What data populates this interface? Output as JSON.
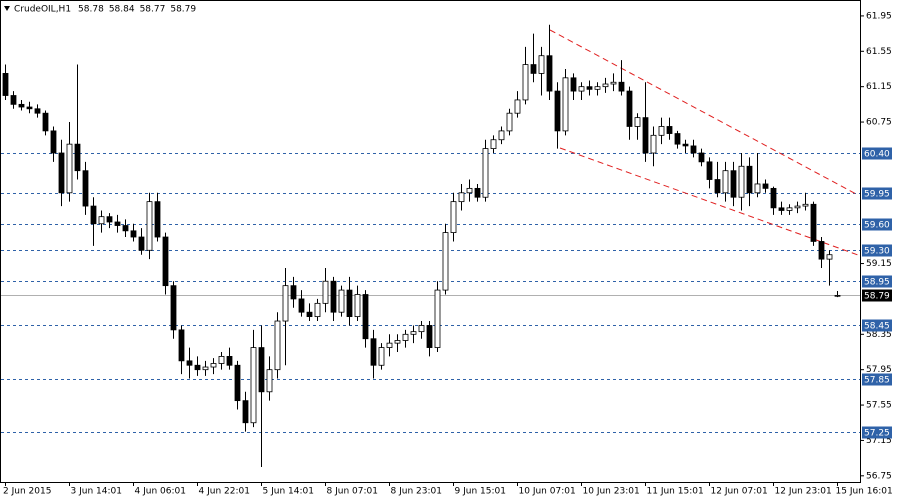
{
  "header": {
    "symbol": "CrudeOIL,H1",
    "ohlc": [
      58.78,
      58.84,
      58.77,
      58.79
    ]
  },
  "chart_data": {
    "type": "candlestick",
    "ylim": [
      56.68,
      62.13
    ],
    "yticks": [
      61.95,
      61.55,
      61.15,
      60.75,
      59.15,
      58.35,
      57.95,
      57.55,
      57.15,
      56.75
    ],
    "levels": [
      {
        "value": 60.4,
        "label": "60.40"
      },
      59.95,
      {
        "value": 59.6,
        "label": "59.60"
      },
      {
        "value": 59.3,
        "label": "59.30"
      },
      58.95,
      58.45,
      57.85,
      57.25
    ],
    "level_color": "#2f62a8",
    "current": 58.79,
    "up_color": "#ffffff",
    "down_color": "#000000",
    "categories": [
      "2 Jun 2015",
      null,
      null,
      null,
      null,
      null,
      null,
      null,
      "3 Jun 14:01",
      null,
      null,
      null,
      null,
      null,
      null,
      null,
      "4 Jun 06:01",
      null,
      null,
      null,
      null,
      null,
      null,
      null,
      "4 Jun 22:01",
      null,
      null,
      null,
      null,
      null,
      null,
      null,
      "5 Jun 14:01",
      null,
      null,
      null,
      null,
      null,
      null,
      null,
      "8 Jun 07:01",
      null,
      null,
      null,
      null,
      null,
      null,
      null,
      "8 Jun 23:01",
      null,
      null,
      null,
      null,
      null,
      null,
      null,
      "9 Jun 15:01",
      null,
      null,
      null,
      null,
      null,
      null,
      null,
      "10 Jun 07:01",
      null,
      null,
      null,
      null,
      null,
      null,
      null,
      "10 Jun 23:01",
      null,
      null,
      null,
      null,
      null,
      null,
      null,
      "11 Jun 15:01",
      null,
      null,
      null,
      null,
      null,
      null,
      null,
      "12 Jun 07:01",
      null,
      null,
      null,
      null,
      null,
      null,
      null,
      "12 Jun 23:01",
      null,
      null,
      null,
      null,
      null,
      null,
      null,
      "15 Jun 16:01"
    ],
    "open": [
      61.3,
      61.05,
      60.95,
      60.92,
      60.9,
      60.85,
      60.65,
      60.4,
      59.95,
      60.5,
      60.2,
      59.8,
      59.6,
      59.68,
      59.62,
      59.58,
      59.52,
      59.45,
      59.3,
      59.85,
      59.45,
      58.9,
      58.4,
      58.05,
      58.0,
      57.95,
      57.98,
      58.02,
      58.1,
      58.0,
      57.6,
      57.35,
      58.2,
      57.7,
      57.95,
      58.5,
      58.9,
      58.75,
      58.6,
      58.55,
      58.7,
      58.95,
      58.6,
      58.85,
      58.55,
      58.8,
      58.3,
      58.0,
      58.2,
      58.25,
      58.28,
      58.35,
      58.38,
      58.45,
      58.2,
      58.85,
      59.5,
      59.85,
      59.95,
      60.0,
      59.9,
      60.45,
      60.55,
      60.65,
      60.85,
      61.0,
      61.4,
      61.3,
      61.5,
      61.1,
      60.65,
      61.25,
      61.1,
      61.15,
      61.12,
      61.15,
      61.18,
      61.2,
      61.1,
      60.7,
      60.8,
      60.4,
      60.6,
      60.7,
      60.62,
      60.5,
      60.48,
      60.4,
      60.3,
      60.1,
      59.95,
      60.2,
      59.9,
      60.25,
      59.95,
      60.05,
      60.0,
      59.78,
      59.75,
      59.78,
      59.8,
      59.82,
      59.4,
      59.2,
      58.78
    ],
    "high": [
      61.4,
      61.1,
      61.0,
      60.98,
      60.95,
      60.88,
      60.7,
      60.55,
      60.75,
      61.4,
      60.3,
      59.9,
      59.75,
      59.72,
      59.7,
      59.65,
      59.6,
      59.55,
      59.95,
      59.95,
      59.5,
      58.95,
      58.45,
      58.2,
      58.1,
      58.05,
      58.08,
      58.15,
      58.2,
      58.05,
      57.7,
      58.4,
      58.45,
      58.1,
      58.6,
      59.1,
      59.0,
      58.85,
      58.7,
      58.75,
      59.1,
      59.0,
      58.9,
      59.0,
      58.9,
      58.85,
      58.4,
      58.25,
      58.35,
      58.35,
      58.4,
      58.45,
      58.5,
      58.5,
      58.95,
      59.6,
      59.95,
      60.05,
      60.1,
      60.05,
      60.55,
      60.6,
      60.7,
      60.9,
      61.1,
      61.6,
      61.75,
      61.6,
      61.85,
      61.2,
      61.35,
      61.3,
      61.2,
      61.22,
      61.2,
      61.25,
      61.3,
      61.45,
      61.15,
      60.85,
      61.2,
      60.7,
      60.8,
      60.8,
      60.65,
      60.55,
      60.55,
      60.45,
      60.35,
      60.3,
      60.3,
      60.3,
      60.4,
      60.35,
      60.4,
      60.1,
      60.02,
      59.85,
      59.82,
      59.85,
      59.95,
      59.85,
      59.45,
      59.3,
      58.84
    ],
    "low": [
      61.0,
      60.9,
      60.88,
      60.85,
      60.8,
      60.6,
      60.3,
      59.8,
      59.85,
      60.1,
      59.7,
      59.35,
      59.5,
      59.55,
      59.5,
      59.45,
      59.4,
      59.25,
      59.2,
      59.4,
      58.8,
      58.3,
      57.9,
      57.85,
      57.88,
      57.88,
      57.9,
      57.95,
      57.95,
      57.5,
      57.25,
      57.3,
      56.85,
      57.6,
      57.85,
      58.0,
      58.65,
      58.55,
      58.5,
      58.5,
      58.6,
      58.5,
      58.55,
      58.45,
      58.5,
      58.2,
      57.85,
      57.95,
      58.1,
      58.15,
      58.2,
      58.25,
      58.3,
      58.1,
      58.15,
      58.8,
      59.4,
      59.75,
      59.85,
      59.85,
      59.85,
      60.4,
      60.5,
      60.6,
      60.8,
      60.95,
      61.2,
      61.05,
      61.0,
      60.45,
      60.6,
      61.0,
      61.0,
      61.05,
      61.05,
      61.08,
      61.1,
      61.05,
      60.55,
      60.55,
      60.3,
      60.25,
      60.5,
      60.55,
      60.45,
      60.4,
      60.35,
      60.25,
      60.0,
      59.9,
      59.85,
      59.8,
      59.75,
      59.8,
      59.9,
      59.95,
      59.7,
      59.7,
      59.7,
      59.72,
      59.75,
      59.35,
      59.1,
      58.9,
      58.77
    ],
    "close": [
      61.05,
      60.95,
      60.92,
      60.9,
      60.85,
      60.65,
      60.4,
      59.95,
      60.5,
      60.2,
      59.8,
      59.6,
      59.68,
      59.62,
      59.58,
      59.52,
      59.45,
      59.3,
      59.85,
      59.45,
      58.9,
      58.4,
      58.05,
      58.0,
      57.95,
      57.98,
      58.02,
      58.1,
      58.0,
      57.6,
      57.35,
      58.2,
      57.7,
      57.95,
      58.5,
      58.9,
      58.75,
      58.6,
      58.55,
      58.7,
      58.95,
      58.6,
      58.85,
      58.55,
      58.8,
      58.3,
      58.0,
      58.2,
      58.25,
      58.28,
      58.35,
      58.38,
      58.45,
      58.2,
      58.85,
      59.5,
      59.85,
      59.95,
      60.0,
      59.9,
      60.45,
      60.55,
      60.65,
      60.85,
      61.0,
      61.4,
      61.3,
      61.5,
      61.1,
      60.65,
      61.25,
      61.1,
      61.15,
      61.12,
      61.15,
      61.18,
      61.2,
      61.1,
      60.7,
      60.8,
      60.4,
      60.6,
      60.7,
      60.62,
      60.5,
      60.48,
      60.4,
      60.3,
      60.1,
      59.95,
      60.2,
      59.9,
      60.25,
      59.95,
      60.05,
      60.0,
      59.78,
      59.75,
      59.78,
      59.8,
      59.82,
      59.4,
      59.2,
      59.25,
      58.79
    ]
  }
}
